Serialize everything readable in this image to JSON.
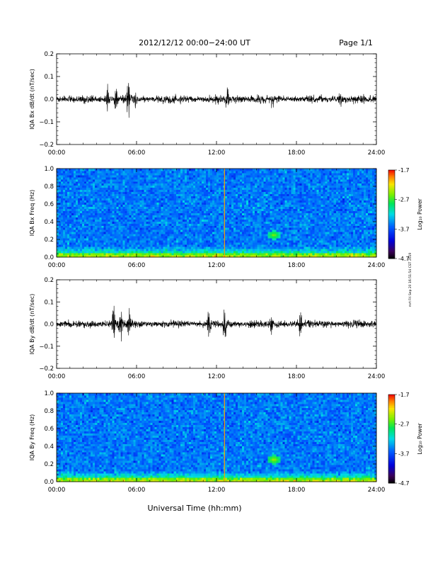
{
  "header": {
    "title": "2012/12/12  00:00−24:00 UT",
    "page": "Page 1/1"
  },
  "footer": {
    "xlabel": "Universal Time (hh:mm)",
    "side_note": "mrt Fri Sep 20 16:51:54 CST 2019"
  },
  "colorbar": {
    "label": "Log₁₀ Power",
    "ticks": [
      "-1.7",
      "-2.7",
      "-3.7",
      "-4.7"
    ],
    "range": [
      -4.7,
      -1.7
    ]
  },
  "chart_data": [
    {
      "type": "line",
      "title": "",
      "ylabel": "IQA Bx dB/dt (nT/sec)",
      "xlabel": "",
      "xlim": [
        0,
        24
      ],
      "ylim": [
        -0.2,
        0.2
      ],
      "xticks": [
        "00:00",
        "06:00",
        "12:00",
        "18:00",
        "24:00"
      ],
      "yticks": [
        "0.2",
        "0.1",
        "0.0",
        "−0.1",
        "−0.2"
      ],
      "baseline": 0.0,
      "bursts": [
        {
          "t": 3.8,
          "amp": 0.06
        },
        {
          "t": 4.5,
          "amp": 0.08
        },
        {
          "t": 5.4,
          "amp": 0.1
        },
        {
          "t": 5.9,
          "amp": 0.05
        },
        {
          "t": 12.8,
          "amp": 0.05
        },
        {
          "t": 16.2,
          "amp": 0.04
        },
        {
          "t": 21.3,
          "amp": 0.04
        }
      ],
      "series": [
        {
          "values_summary": "noise envelope about ±0.02 with sporadic bursts up to ±0.1"
        }
      ]
    },
    {
      "type": "heatmap",
      "title": "",
      "ylabel": "IQA Bx Freq (Hz)",
      "xlim": [
        0,
        24
      ],
      "ylim": [
        0,
        1.0
      ],
      "xticks": [
        "00:00",
        "06:00",
        "12:00",
        "18:00",
        "24:00"
      ],
      "yticks": [
        "1.0",
        "0.8",
        "0.6",
        "0.4",
        "0.2",
        "0.0"
      ],
      "zlabel": "Log₁₀ Power",
      "zlim": [
        -4.7,
        -1.7
      ],
      "features": [
        {
          "kind": "low-frequency band",
          "freq_max": 0.08,
          "level": -2.7
        },
        {
          "kind": "vertical line",
          "t": 12.6,
          "level": -2.0
        },
        {
          "kind": "spot",
          "t": 16.3,
          "freq": 0.25,
          "level": -2.5
        }
      ]
    },
    {
      "type": "line",
      "title": "",
      "ylabel": "IQA By dB/dt (nT/sec)",
      "xlabel": "",
      "xlim": [
        0,
        24
      ],
      "ylim": [
        -0.2,
        0.2
      ],
      "xticks": [
        "00:00",
        "06:00",
        "12:00",
        "18:00",
        "24:00"
      ],
      "yticks": [
        "0.2",
        "0.1",
        "0.0",
        "−0.1",
        "−0.2"
      ],
      "baseline": 0.0,
      "bursts": [
        {
          "t": 4.3,
          "amp": 0.11
        },
        {
          "t": 4.8,
          "amp": 0.08
        },
        {
          "t": 5.4,
          "amp": 0.09
        },
        {
          "t": 11.4,
          "amp": 0.08
        },
        {
          "t": 12.6,
          "amp": 0.09
        },
        {
          "t": 16.1,
          "amp": 0.05
        },
        {
          "t": 18.3,
          "amp": 0.07
        }
      ],
      "series": [
        {
          "values_summary": "noise envelope about ±0.02 with sporadic bursts up to ±0.12"
        }
      ]
    },
    {
      "type": "heatmap",
      "title": "",
      "ylabel": "IQA By Freq (Hz)",
      "xlim": [
        0,
        24
      ],
      "ylim": [
        0,
        1.0
      ],
      "xticks": [
        "00:00",
        "06:00",
        "12:00",
        "18:00",
        "24:00"
      ],
      "yticks": [
        "1.0",
        "0.8",
        "0.6",
        "0.4",
        "0.2",
        "0.0"
      ],
      "zlabel": "Log₁₀ Power",
      "zlim": [
        -4.7,
        -1.7
      ],
      "features": [
        {
          "kind": "low-frequency band",
          "freq_max": 0.08,
          "level": -2.7
        },
        {
          "kind": "vertical line",
          "t": 12.6,
          "level": -2.0
        },
        {
          "kind": "spot",
          "t": 16.3,
          "freq": 0.25,
          "level": -2.4
        }
      ]
    }
  ]
}
